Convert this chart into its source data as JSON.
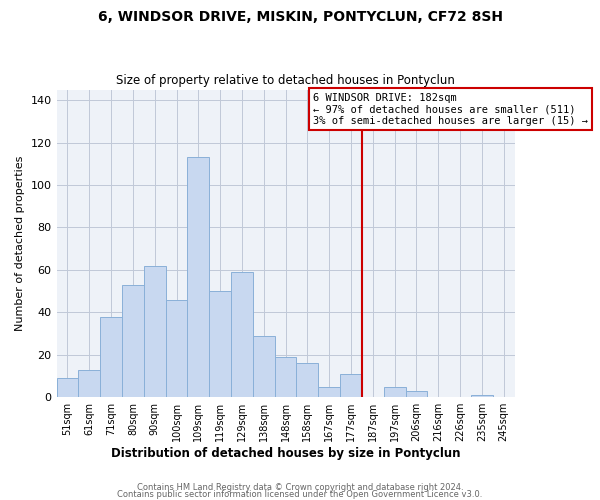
{
  "title": "6, WINDSOR DRIVE, MISKIN, PONTYCLUN, CF72 8SH",
  "subtitle": "Size of property relative to detached houses in Pontyclun",
  "xlabel": "Distribution of detached houses by size in Pontyclun",
  "ylabel": "Number of detached properties",
  "bar_labels": [
    "51sqm",
    "61sqm",
    "71sqm",
    "80sqm",
    "90sqm",
    "100sqm",
    "109sqm",
    "119sqm",
    "129sqm",
    "138sqm",
    "148sqm",
    "158sqm",
    "167sqm",
    "177sqm",
    "187sqm",
    "197sqm",
    "206sqm",
    "216sqm",
    "226sqm",
    "235sqm",
    "245sqm"
  ],
  "bar_heights": [
    9,
    13,
    38,
    53,
    62,
    46,
    113,
    50,
    59,
    29,
    19,
    16,
    5,
    11,
    0,
    5,
    3,
    0,
    0,
    1,
    0
  ],
  "bar_color": "#c8d8f0",
  "bar_edge_color": "#8ab0d8",
  "ylim": [
    0,
    145
  ],
  "yticks": [
    0,
    20,
    40,
    60,
    80,
    100,
    120,
    140
  ],
  "vline_color": "#cc0000",
  "annotation_title": "6 WINDSOR DRIVE: 182sqm",
  "annotation_line1": "← 97% of detached houses are smaller (511)",
  "annotation_line2": "3% of semi-detached houses are larger (15) →",
  "annotation_box_color": "#ffffff",
  "annotation_box_edge": "#cc0000",
  "footer1": "Contains HM Land Registry data © Crown copyright and database right 2024.",
  "footer2": "Contains public sector information licensed under the Open Government Licence v3.0.",
  "background_color": "#ffffff",
  "grid_color": "#c0c8d8",
  "plot_bg_color": "#eef2f8"
}
